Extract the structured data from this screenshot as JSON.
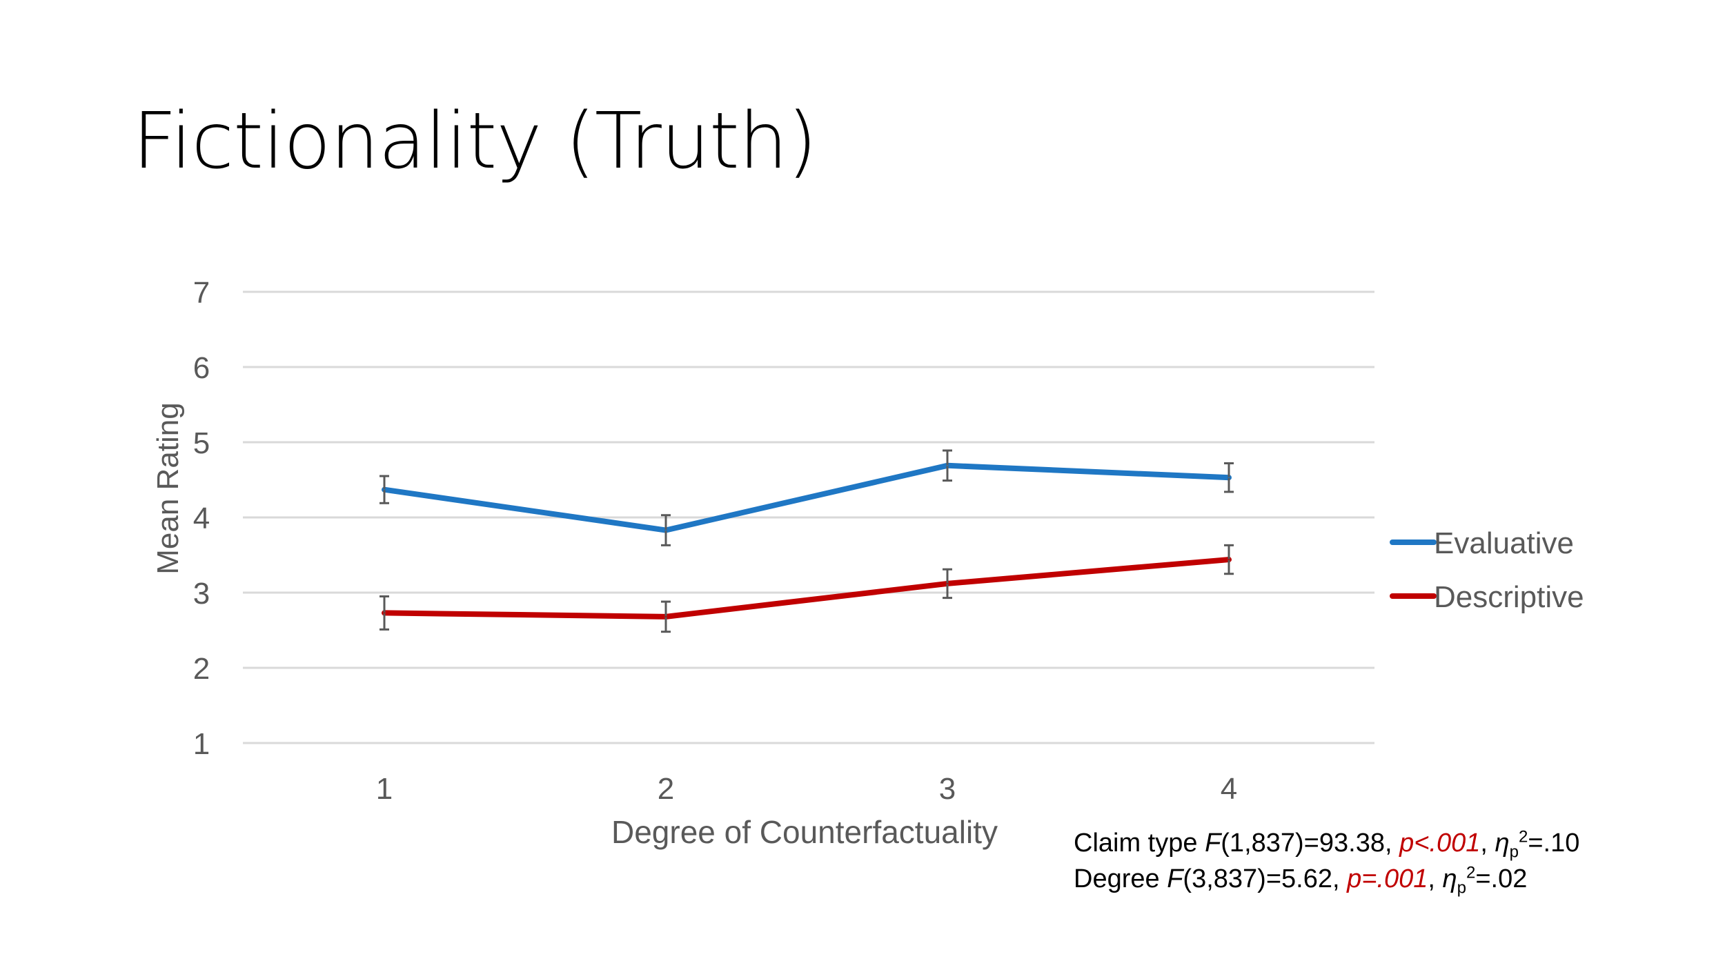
{
  "slide": {
    "title": "Fictionality (Truth)"
  },
  "chart_data": {
    "type": "line",
    "x": [
      1,
      2,
      3,
      4
    ],
    "categories": [
      "1",
      "2",
      "3",
      "4"
    ],
    "xlabel": "Degree of Counterfactuality",
    "ylabel": "Mean Rating",
    "ylim": [
      1,
      7
    ],
    "yticks": [
      1,
      2,
      3,
      4,
      5,
      6,
      7
    ],
    "grid": true,
    "legend": "right",
    "series": [
      {
        "name": "Evaluative",
        "color": "#1f77c4",
        "values": [
          4.37,
          3.83,
          4.69,
          4.53
        ],
        "error": [
          0.18,
          0.2,
          0.2,
          0.19
        ]
      },
      {
        "name": "Descriptive",
        "color": "#c00000",
        "values": [
          2.73,
          2.68,
          3.12,
          3.44
        ],
        "error": [
          0.22,
          0.2,
          0.19,
          0.19
        ]
      }
    ]
  },
  "stats": {
    "line1": {
      "label": "Claim type ",
      "f_letter": "F",
      "f_value": "(1,837)=93.38, ",
      "p_value": "p<.001",
      "sep": ", ",
      "eta": "η",
      "eta_sub": "p",
      "eta_sup": "2",
      "eta_value": "=.10"
    },
    "line2": {
      "label": "Degree ",
      "f_letter": "F",
      "f_value": "(3,837)=5.62, ",
      "p_value": "p=.001",
      "sep": ", ",
      "eta": "η",
      "eta_sub": "p",
      "eta_sup": "2",
      "eta_value": "=.02"
    }
  }
}
